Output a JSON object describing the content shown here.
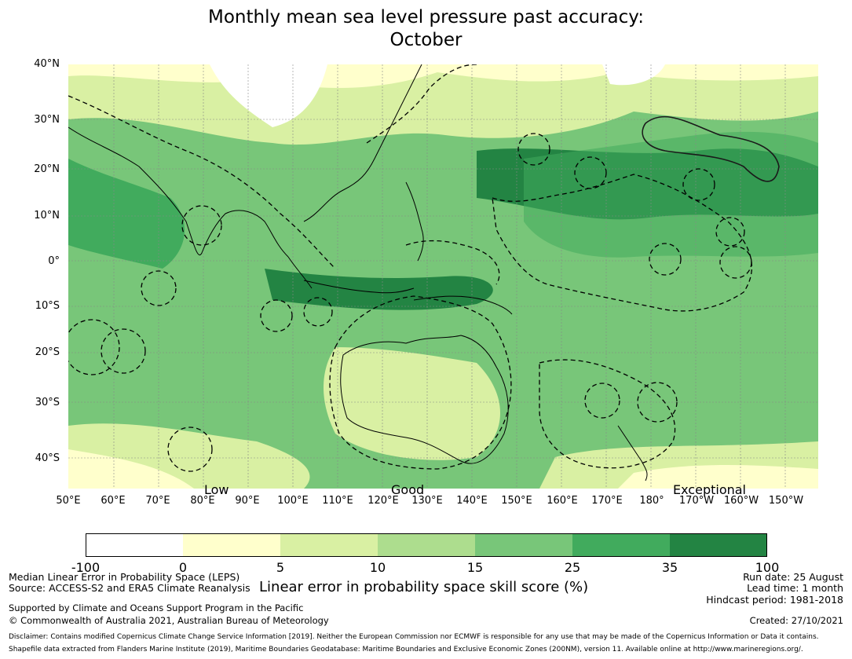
{
  "title": {
    "line1": "Monthly mean sea level pressure past accuracy:",
    "line2": "October"
  },
  "map": {
    "lat_labels": [
      "40°N",
      "30°N",
      "20°N",
      "10°N",
      "0°",
      "10°S",
      "20°S",
      "30°S",
      "40°S"
    ],
    "lon_labels": [
      "50°E",
      "60°E",
      "70°E",
      "80°E",
      "90°E",
      "100°E",
      "110°E",
      "120°E",
      "130°E",
      "140°E",
      "150°E",
      "160°E",
      "170°E",
      "180°",
      "170°W",
      "160°W",
      "150°W"
    ],
    "category_labels": [
      "Low",
      "Good",
      "Exceptional"
    ]
  },
  "colorbar": {
    "ticks": [
      "-100",
      "0",
      "5",
      "10",
      "15",
      "25",
      "35",
      "100"
    ],
    "colors": [
      "#ffffff",
      "#ffffcc",
      "#d9f0a3",
      "#addd8e",
      "#78c679",
      "#41ab5d",
      "#238443"
    ],
    "label": "Linear error in probability space skill score (%)"
  },
  "footer": {
    "left1": "Median Linear Error in Probability Space (LEPS)",
    "left2": "Source: ACCESS-S2 and ERA5 Climate Reanalysis",
    "left3": "Supported by Climate and Oceans Support Program in the Pacific",
    "left4": "© Commonwealth of Australia 2021, Australian Bureau of Meteorology",
    "right1": "Run date: 25 August",
    "right2": "Lead time: 1 month",
    "right3": "Hindcast period: 1981-2018",
    "right4": "Created: 27/10/2021",
    "disclaimer1": "Disclaimer: Contains modified Copernicus Climate Change Service Information [2019]. Neither the European Commission nor ECMWF is responsible for any use that may be made of the Copernicus Information or Data it contains.",
    "disclaimer2": "Shapefile data extracted from Flanders Marine Institute (2019), Maritime Boundaries Geodatabase: Maritime Boundaries and Exclusive Economic Zones (200NM), version 11. Available online at http://www.marineregions.org/."
  }
}
